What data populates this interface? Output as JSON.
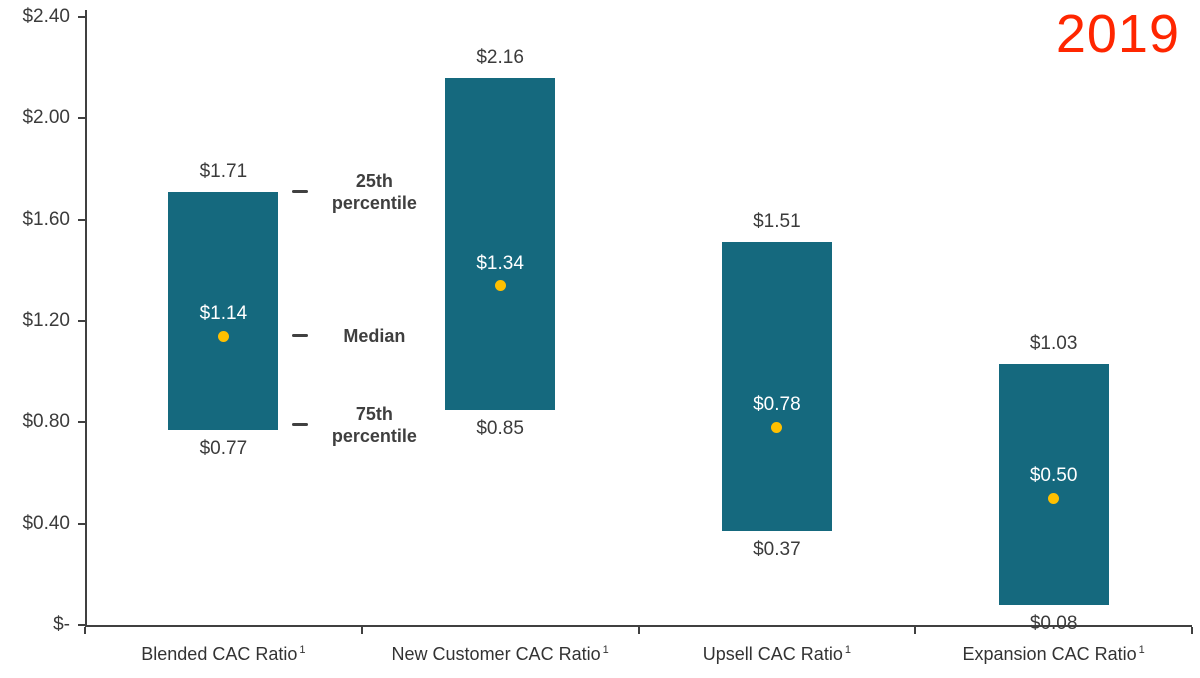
{
  "title": "2019",
  "colors": {
    "bar": "#15697E",
    "median_dot": "#FFC000",
    "title": "#FF2600",
    "axis": "#404040",
    "value_text": "#3B3B3B",
    "category_text": "#333333",
    "annotation_text": "#3F3F3F",
    "median_label_text": "#FFFFFF"
  },
  "chart_data": {
    "type": "bar",
    "subtype": "floating-range-bars-with-median-dot",
    "title": "2019",
    "categories": [
      "Blended CAC Ratio",
      "New Customer CAC Ratio",
      "Upsell CAC Ratio",
      "Expansion CAC Ratio"
    ],
    "category_superscript": "1",
    "ylim": [
      0,
      2.4
    ],
    "grid": false,
    "yticks": [
      {
        "value": 2.4,
        "label": "$2.40"
      },
      {
        "value": 2.0,
        "label": "$2.00"
      },
      {
        "value": 1.6,
        "label": "$1.60"
      },
      {
        "value": 1.2,
        "label": "$1.20"
      },
      {
        "value": 0.8,
        "label": "$0.80"
      },
      {
        "value": 0.4,
        "label": "$0.40"
      },
      {
        "value": 0.0,
        "label": "$-"
      }
    ],
    "series": [
      {
        "name": "25th percentile (bar top)",
        "values": [
          1.71,
          2.16,
          1.51,
          1.03
        ]
      },
      {
        "name": "Median",
        "values": [
          1.14,
          1.34,
          0.78,
          0.5
        ]
      },
      {
        "name": "75th percentile (bar bottom)",
        "values": [
          0.77,
          0.85,
          0.37,
          0.08
        ]
      }
    ],
    "bars": [
      {
        "category": "Blended CAC Ratio",
        "top": 1.71,
        "bottom": 0.77,
        "median": 1.14,
        "top_label": "$1.71",
        "bottom_label": "$0.77",
        "median_label": "$1.14"
      },
      {
        "category": "New Customer CAC Ratio",
        "top": 2.16,
        "bottom": 0.85,
        "median": 1.34,
        "top_label": "$2.16",
        "bottom_label": "$0.85",
        "median_label": "$1.34"
      },
      {
        "category": "Upsell CAC Ratio",
        "top": 1.51,
        "bottom": 0.37,
        "median": 0.78,
        "top_label": "$1.51",
        "bottom_label": "$0.37",
        "median_label": "$0.78"
      },
      {
        "category": "Expansion CAC Ratio",
        "top": 1.03,
        "bottom": 0.08,
        "median": 0.5,
        "top_label": "$1.03",
        "bottom_label": "$0.08",
        "median_label": "$0.50"
      }
    ],
    "annotations": [
      {
        "lines": [
          "25th",
          "percentile"
        ],
        "value": 1.71
      },
      {
        "lines": [
          "Median"
        ],
        "value": 1.14
      },
      {
        "lines": [
          "75th",
          "percentile"
        ],
        "value": 0.79
      }
    ]
  }
}
